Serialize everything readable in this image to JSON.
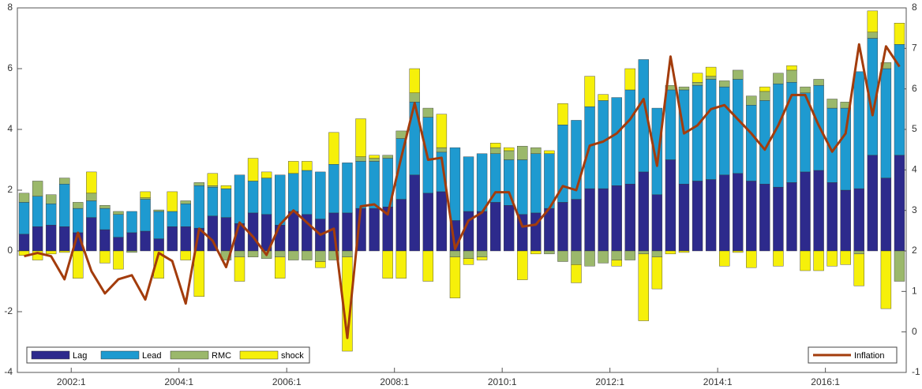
{
  "chart_data": {
    "type": "bar",
    "stacked": true,
    "categories": [
      null,
      null,
      null,
      null,
      "2002:1",
      null,
      null,
      null,
      null,
      null,
      null,
      null,
      "2004:1",
      null,
      null,
      null,
      null,
      null,
      null,
      null,
      "2006:1",
      null,
      null,
      null,
      null,
      null,
      null,
      null,
      "2008:1",
      null,
      null,
      null,
      null,
      null,
      null,
      null,
      "2010:1",
      null,
      null,
      null,
      null,
      null,
      null,
      null,
      "2012:1",
      null,
      null,
      null,
      null,
      null,
      null,
      null,
      "2014:1",
      null,
      null,
      null,
      null,
      null,
      null,
      null,
      "2016:1",
      null,
      null,
      null,
      null,
      null
    ],
    "series": [
      {
        "name": "Lag",
        "color": "#2d2a8c",
        "values": [
          0.55,
          0.8,
          0.85,
          0.8,
          0.6,
          1.1,
          0.7,
          0.45,
          0.6,
          0.65,
          0.4,
          0.8,
          0.8,
          0.75,
          1.15,
          1.1,
          0.9,
          1.25,
          1.2,
          0.85,
          1.3,
          1.2,
          1.05,
          1.25,
          1.25,
          1.4,
          1.4,
          1.45,
          1.7,
          2.5,
          1.9,
          1.95,
          1.0,
          1.3,
          1.3,
          1.6,
          1.5,
          1.2,
          1.25,
          1.4,
          1.6,
          1.7,
          2.05,
          2.05,
          2.15,
          2.2,
          2.6,
          1.85,
          3.0,
          2.2,
          2.3,
          2.35,
          2.5,
          2.55,
          2.3,
          2.2,
          2.1,
          2.25,
          2.6,
          2.65,
          2.25,
          2.0,
          2.05,
          3.15,
          2.4,
          3.15
        ]
      },
      {
        "name": "Lead",
        "color": "#1e9ad0",
        "values": [
          1.05,
          1.0,
          0.7,
          1.4,
          0.8,
          0.55,
          0.7,
          0.75,
          0.7,
          1.05,
          0.9,
          0.5,
          0.75,
          1.4,
          0.95,
          0.95,
          1.6,
          1.05,
          1.2,
          1.65,
          1.25,
          1.45,
          1.55,
          1.6,
          1.65,
          1.55,
          1.55,
          1.6,
          2.0,
          2.4,
          2.5,
          1.3,
          2.4,
          1.8,
          1.9,
          1.6,
          1.5,
          1.8,
          1.95,
          1.8,
          2.55,
          2.6,
          2.7,
          2.9,
          2.9,
          3.1,
          3.7,
          2.85,
          2.3,
          3.1,
          3.15,
          3.3,
          2.9,
          3.1,
          2.5,
          2.75,
          3.4,
          3.3,
          2.6,
          2.8,
          2.45,
          2.7,
          3.85,
          3.85,
          3.6,
          3.65
        ]
      },
      {
        "name": "RMC",
        "color": "#9bb86b",
        "values": [
          0.3,
          0.5,
          0.3,
          0.2,
          0.2,
          0.25,
          0.1,
          0.1,
          -0.05,
          0.05,
          0.05,
          0,
          0.1,
          0.1,
          0.05,
          -0.3,
          -0.2,
          -0.2,
          -0.25,
          -0.2,
          -0.3,
          -0.3,
          -0.35,
          -0.3,
          -0.2,
          0.15,
          0.1,
          0.1,
          0.25,
          0.3,
          0.3,
          0.15,
          -0.2,
          -0.25,
          -0.2,
          0.2,
          0.3,
          0.45,
          0.2,
          -0.1,
          -0.35,
          -0.45,
          -0.5,
          -0.4,
          -0.3,
          -0.3,
          -0.1,
          -0.2,
          0.15,
          0.1,
          0.1,
          0.1,
          0.2,
          0.3,
          0.3,
          0.3,
          0.35,
          0.4,
          0.2,
          0.2,
          0.3,
          0.2,
          -0.1,
          0.2,
          0.2,
          -1.0
        ]
      },
      {
        "name": "shock",
        "color": "#f6f00a",
        "values": [
          -0.15,
          -0.3,
          -0.1,
          -0.05,
          -0.9,
          0.7,
          -0.4,
          -0.6,
          0,
          0.2,
          -0.9,
          0.65,
          -0.3,
          -1.5,
          0.4,
          0.1,
          -0.8,
          0.75,
          0.2,
          -0.7,
          0.4,
          0.3,
          -0.2,
          1.05,
          -3.1,
          1.25,
          0.1,
          -0.9,
          -0.9,
          0.8,
          -1.0,
          1.1,
          -1.35,
          -0.2,
          -0.1,
          0.15,
          0.1,
          -0.95,
          -0.1,
          0.1,
          0.7,
          -0.6,
          1.0,
          0.2,
          -0.2,
          0.7,
          -2.2,
          -1.05,
          -0.1,
          -0.05,
          0.3,
          0.3,
          -0.5,
          -0.05,
          -0.55,
          0.15,
          -0.5,
          0.15,
          -0.65,
          -0.65,
          -0.5,
          -0.45,
          -1.05,
          0.7,
          -1.9,
          0.7
        ]
      },
      {
        "name": "Inflation",
        "type": "line",
        "axis": "y2",
        "color": "#a33c0c",
        "values": [
          1.87,
          1.95,
          1.87,
          1.3,
          2.45,
          1.5,
          0.95,
          1.3,
          1.4,
          0.8,
          1.95,
          1.75,
          0.7,
          2.55,
          2.25,
          1.6,
          2.7,
          2.35,
          1.9,
          2.65,
          3.0,
          2.7,
          2.4,
          2.55,
          -0.15,
          3.1,
          3.15,
          2.9,
          4.3,
          5.65,
          4.25,
          4.3,
          2.05,
          2.75,
          2.95,
          3.45,
          3.45,
          2.6,
          2.65,
          3.05,
          3.6,
          3.5,
          4.6,
          4.7,
          4.9,
          5.25,
          5.75,
          4.1,
          6.8,
          4.9,
          5.1,
          5.5,
          5.6,
          5.25,
          4.9,
          4.5,
          5.1,
          5.85,
          5.85,
          5.1,
          4.45,
          4.9,
          7.1,
          5.35,
          7.05,
          6.55
        ]
      }
    ],
    "ylim": [
      -4,
      8
    ],
    "yticks": [
      -4,
      -2,
      0,
      2,
      4,
      6,
      8
    ],
    "y2lim": [
      -1,
      8
    ],
    "y2ticks": [
      -1,
      0,
      1,
      2,
      3,
      4,
      5,
      6,
      7,
      8
    ],
    "legend": "lower left",
    "legend2": "lower right"
  }
}
